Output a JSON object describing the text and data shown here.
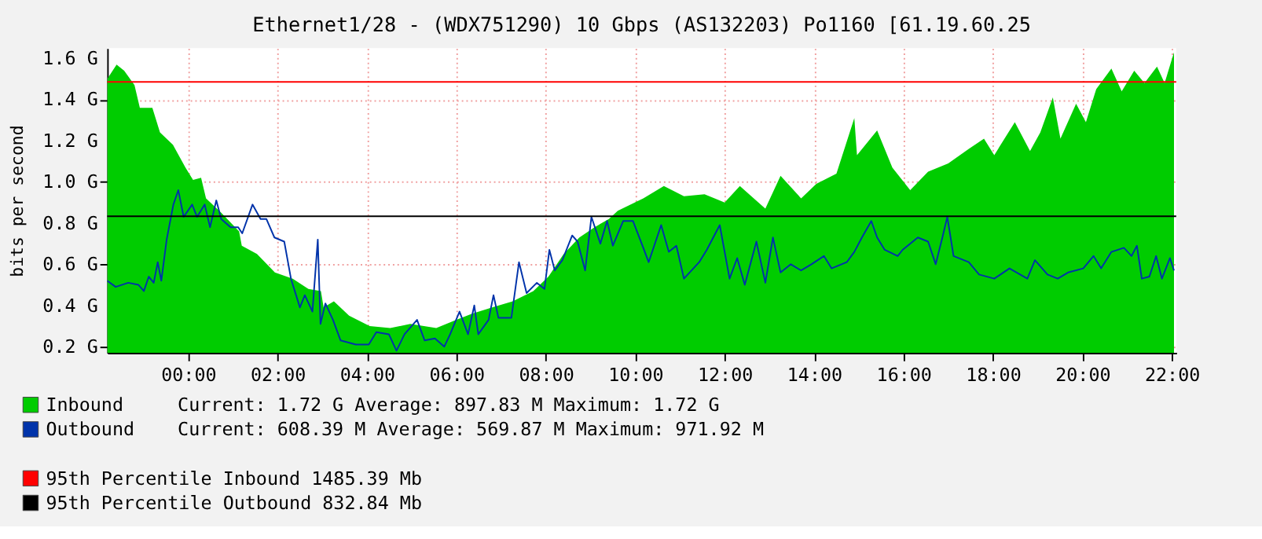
{
  "chart_data": {
    "type": "area",
    "title": "Ethernet1/28 - (WDX751290) 10 Gbps (AS132203) Po1160 [61.19.60.25",
    "ylabel": "bits per second",
    "xlim": [
      -1.81,
      22.1
    ],
    "ylim": [
      0.17,
      1.65
    ],
    "xticks": [
      {
        "value": 0,
        "label": "00:00"
      },
      {
        "value": 2,
        "label": "02:00"
      },
      {
        "value": 4,
        "label": "04:00"
      },
      {
        "value": 6,
        "label": "06:00"
      },
      {
        "value": 8,
        "label": "08:00"
      },
      {
        "value": 10,
        "label": "10:00"
      },
      {
        "value": 12,
        "label": "12:00"
      },
      {
        "value": 14,
        "label": "14:00"
      },
      {
        "value": 16,
        "label": "16:00"
      },
      {
        "value": 18,
        "label": "18:00"
      },
      {
        "value": 20,
        "label": "20:00"
      },
      {
        "value": 22,
        "label": "22:00"
      }
    ],
    "yticks": [
      {
        "value": 0.2,
        "label": "0.2 G"
      },
      {
        "value": 0.4,
        "label": "0.4 G"
      },
      {
        "value": 0.6,
        "label": "0.6 G"
      },
      {
        "value": 0.8,
        "label": "0.8 G"
      },
      {
        "value": 1.0,
        "label": "1.0 G"
      },
      {
        "value": 1.2,
        "label": "1.2 G"
      },
      {
        "value": 1.4,
        "label": "1.4 G"
      },
      {
        "value": 1.6,
        "label": "1.6 G"
      }
    ],
    "grid": true,
    "legend": "bottom",
    "series": [
      {
        "name": "Inbound",
        "color": "#00cc00",
        "x": [
          -1.81,
          -1.6,
          -1.43,
          -1.2,
          -1.08,
          -0.8,
          -0.63,
          -0.34,
          -0.06,
          0.11,
          0.29,
          0.4,
          0.74,
          1.14,
          1.2,
          1.54,
          1.94,
          2.34,
          2.69,
          2.97,
          3.03,
          3.26,
          3.6,
          4.06,
          4.52,
          4.97,
          5.55,
          6.0,
          6.35,
          6.8,
          7.26,
          7.72,
          8.06,
          8.4,
          8.75,
          9.09,
          9.41,
          9.61,
          10.18,
          10.64,
          11.09,
          11.55,
          12.0,
          12.34,
          12.91,
          13.25,
          13.71,
          14.05,
          14.5,
          14.9,
          14.96,
          15.41,
          15.75,
          16.15,
          16.55,
          17.0,
          17.46,
          17.8,
          18.03,
          18.49,
          18.83,
          19.06,
          19.34,
          19.51,
          19.86,
          20.08,
          20.31,
          20.65,
          20.88,
          21.16,
          21.39,
          21.67,
          21.84,
          22.05
        ],
        "values": [
          1.5,
          1.57,
          1.54,
          1.47,
          1.36,
          1.36,
          1.24,
          1.18,
          1.07,
          1.01,
          1.02,
          0.92,
          0.85,
          0.76,
          0.69,
          0.65,
          0.56,
          0.53,
          0.48,
          0.47,
          0.39,
          0.42,
          0.35,
          0.3,
          0.29,
          0.31,
          0.29,
          0.33,
          0.36,
          0.39,
          0.42,
          0.47,
          0.54,
          0.65,
          0.73,
          0.78,
          0.82,
          0.86,
          0.92,
          0.98,
          0.93,
          0.94,
          0.9,
          0.98,
          0.87,
          1.03,
          0.92,
          0.99,
          1.04,
          1.31,
          1.13,
          1.25,
          1.07,
          0.96,
          1.05,
          1.09,
          1.16,
          1.21,
          1.13,
          1.29,
          1.15,
          1.24,
          1.41,
          1.21,
          1.38,
          1.29,
          1.45,
          1.55,
          1.44,
          1.54,
          1.48,
          1.56,
          1.48,
          1.63
        ]
      },
      {
        "name": "Outbound",
        "type": "line",
        "color": "#0033aa",
        "x": [
          -1.81,
          -1.62,
          -1.34,
          -1.11,
          -0.99,
          -0.88,
          -0.77,
          -0.68,
          -0.6,
          -0.48,
          -0.33,
          -0.22,
          -0.1,
          0.09,
          0.2,
          0.37,
          0.49,
          0.63,
          0.74,
          0.95,
          1.12,
          1.21,
          1.44,
          1.62,
          1.75,
          1.93,
          2.15,
          2.3,
          2.5,
          2.61,
          2.78,
          2.9,
          2.96,
          3.07,
          3.24,
          3.41,
          3.75,
          4.04,
          4.21,
          4.49,
          4.66,
          4.84,
          5.12,
          5.29,
          5.52,
          5.73,
          5.86,
          6.07,
          6.26,
          6.4,
          6.49,
          6.72,
          6.83,
          6.94,
          7.23,
          7.4,
          7.57,
          7.8,
          7.97,
          8.08,
          8.2,
          8.37,
          8.59,
          8.71,
          8.88,
          9.02,
          9.22,
          9.37,
          9.5,
          9.73,
          9.95,
          10.18,
          10.3,
          10.58,
          10.75,
          10.92,
          11.09,
          11.43,
          11.6,
          11.89,
          12.11,
          12.28,
          12.45,
          12.71,
          12.91,
          13.08,
          13.25,
          13.48,
          13.71,
          13.94,
          14.22,
          14.39,
          14.73,
          14.9,
          15.07,
          15.28,
          15.41,
          15.58,
          15.87,
          15.98,
          16.32,
          16.55,
          16.72,
          16.87,
          16.98,
          17.12,
          17.46,
          17.69,
          18.03,
          18.37,
          18.77,
          18.94,
          19.22,
          19.45,
          19.68,
          20.02,
          20.25,
          20.42,
          20.65,
          20.93,
          21.1,
          21.22,
          21.33,
          21.5,
          21.65,
          21.78,
          21.96,
          22.05
        ],
        "values": [
          0.52,
          0.49,
          0.51,
          0.5,
          0.47,
          0.54,
          0.51,
          0.61,
          0.52,
          0.72,
          0.89,
          0.96,
          0.83,
          0.89,
          0.83,
          0.89,
          0.78,
          0.91,
          0.82,
          0.78,
          0.78,
          0.75,
          0.89,
          0.82,
          0.82,
          0.73,
          0.71,
          0.53,
          0.39,
          0.45,
          0.37,
          0.72,
          0.31,
          0.41,
          0.33,
          0.23,
          0.21,
          0.21,
          0.27,
          0.26,
          0.18,
          0.26,
          0.33,
          0.23,
          0.24,
          0.2,
          0.26,
          0.37,
          0.26,
          0.4,
          0.26,
          0.33,
          0.45,
          0.34,
          0.34,
          0.61,
          0.46,
          0.51,
          0.48,
          0.67,
          0.57,
          0.62,
          0.74,
          0.71,
          0.57,
          0.83,
          0.7,
          0.81,
          0.69,
          0.81,
          0.81,
          0.68,
          0.61,
          0.79,
          0.66,
          0.69,
          0.53,
          0.61,
          0.67,
          0.79,
          0.53,
          0.63,
          0.5,
          0.71,
          0.51,
          0.73,
          0.56,
          0.6,
          0.57,
          0.6,
          0.64,
          0.58,
          0.61,
          0.66,
          0.73,
          0.81,
          0.73,
          0.67,
          0.64,
          0.67,
          0.73,
          0.71,
          0.6,
          0.73,
          0.83,
          0.64,
          0.61,
          0.55,
          0.53,
          0.58,
          0.53,
          0.62,
          0.55,
          0.53,
          0.56,
          0.58,
          0.64,
          0.58,
          0.66,
          0.68,
          0.64,
          0.69,
          0.53,
          0.54,
          0.64,
          0.53,
          0.63,
          0.57
        ]
      }
    ],
    "ref_lines": [
      {
        "axis": "y",
        "value": 1.48539,
        "label": "95th Percentile Inbound 1485.39 Mb",
        "color": "#ff0000"
      },
      {
        "axis": "y",
        "value": 0.83284,
        "label": "95th Percentile Outbound 832.84 Mb",
        "color": "#000000"
      }
    ],
    "annotations": [
      "Current: 1.72 G Average: 897.83 M Maximum: 1.72 G",
      "Current: 608.39 M Average: 569.87 M Maximum: 971.92 M"
    ]
  }
}
